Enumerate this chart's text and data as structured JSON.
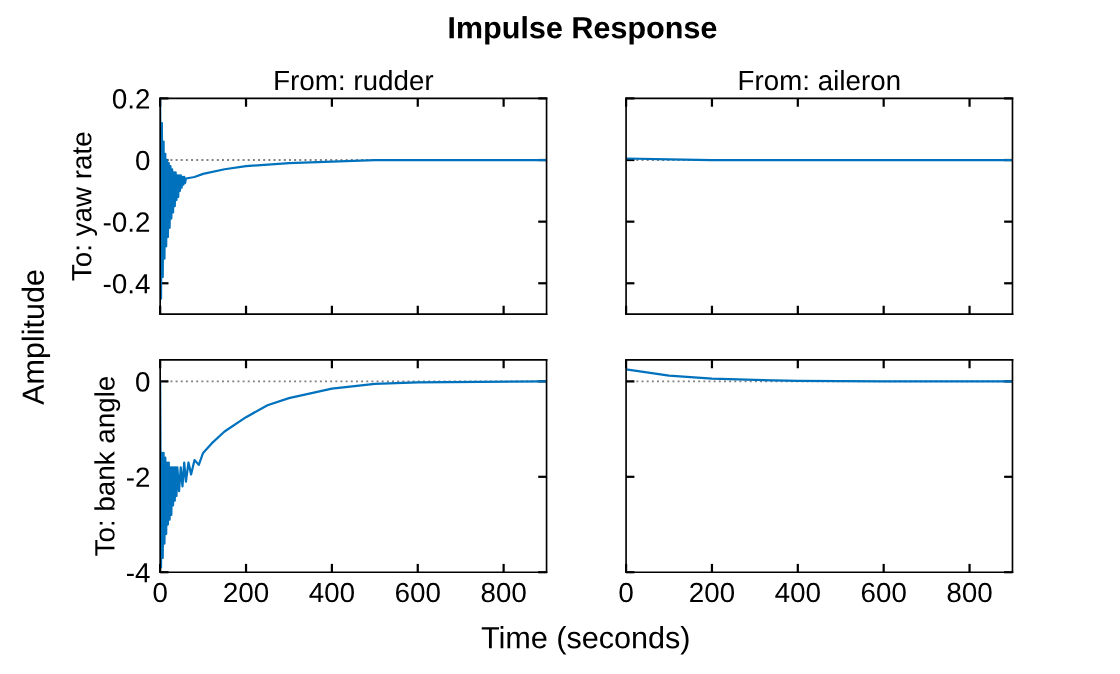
{
  "chart_data": [
    {
      "type": "line",
      "title": "From: rudder",
      "ylabel": "To: yaw rate",
      "annotations": [
        "Impulse Response",
        "Amplitude",
        "Time (seconds)"
      ],
      "tick_labels": "y",
      "x": [
        0,
        2,
        4,
        6,
        8,
        10,
        12,
        14,
        16,
        18,
        20,
        22,
        24,
        26,
        28,
        30,
        32,
        34,
        36,
        38,
        40,
        42,
        44,
        46,
        48,
        50,
        52,
        54,
        56,
        58,
        60,
        80,
        100,
        150,
        200,
        300,
        400,
        500,
        900
      ],
      "series": [
        {
          "color": "#0072bd",
          "values": [
            0.2,
            -0.45,
            0.12,
            -0.38,
            0.06,
            -0.32,
            0.02,
            -0.28,
            0.0,
            -0.25,
            -0.01,
            -0.22,
            -0.02,
            -0.19,
            -0.03,
            -0.17,
            -0.04,
            -0.15,
            -0.04,
            -0.13,
            -0.05,
            -0.12,
            -0.05,
            -0.1,
            -0.05,
            -0.09,
            -0.055,
            -0.08,
            -0.055,
            -0.075,
            -0.06,
            -0.055,
            -0.045,
            -0.03,
            -0.02,
            -0.01,
            -0.005,
            0,
            0
          ]
        }
      ],
      "xlim": [
        0,
        900
      ],
      "xticks": [
        0,
        200,
        400,
        600,
        800
      ],
      "ylim": [
        -0.5,
        0.2
      ],
      "yticks": [
        -0.4,
        -0.2,
        0,
        0.2
      ],
      "ref_lines": [
        {
          "axis": "y",
          "value": 0,
          "color": "#808080",
          "line_style": "dotted"
        }
      ]
    },
    {
      "type": "line",
      "title": "From: aileron",
      "tick_labels": false,
      "x": [
        0,
        100,
        200,
        900
      ],
      "series": [
        {
          "color": "#0072bd",
          "values": [
            0.005,
            0.002,
            0,
            0
          ]
        }
      ],
      "xlim": [
        0,
        900
      ],
      "xticks": [
        0,
        200,
        400,
        600,
        800
      ],
      "ylim": [
        -0.5,
        0.2
      ],
      "yticks": [
        -0.4,
        -0.2,
        0,
        0.2
      ],
      "ref_lines": [
        {
          "axis": "y",
          "value": 0,
          "color": "#808080",
          "line_style": "dotted"
        }
      ]
    },
    {
      "type": "line",
      "ylabel": "To: bank angle",
      "x": [
        0,
        2,
        4,
        6,
        8,
        10,
        12,
        14,
        16,
        18,
        20,
        22,
        24,
        26,
        28,
        30,
        32,
        34,
        36,
        38,
        40,
        44,
        48,
        52,
        56,
        60,
        66,
        72,
        80,
        90,
        100,
        120,
        150,
        200,
        250,
        300,
        400,
        500,
        600,
        900
      ],
      "series": [
        {
          "color": "#0072bd",
          "values": [
            0,
            -3.9,
            -1.5,
            -3.7,
            -1.5,
            -3.4,
            -1.6,
            -3.2,
            -1.7,
            -3.0,
            -1.7,
            -2.9,
            -1.8,
            -2.8,
            -1.8,
            -2.6,
            -1.8,
            -2.5,
            -1.8,
            -2.4,
            -1.8,
            -2.3,
            -1.8,
            -2.2,
            -1.7,
            -2.1,
            -1.7,
            -1.95,
            -1.65,
            -1.75,
            -1.5,
            -1.3,
            -1.05,
            -0.75,
            -0.5,
            -0.35,
            -0.15,
            -0.05,
            -0.02,
            0
          ]
        }
      ],
      "xlim": [
        0,
        900
      ],
      "xticks": [
        0,
        200,
        400,
        600,
        800
      ],
      "ylim": [
        -4,
        0.45
      ],
      "yticks": [
        -4,
        -2,
        0
      ],
      "ref_lines": [
        {
          "axis": "y",
          "value": 0,
          "color": "#808080",
          "line_style": "dotted"
        }
      ]
    },
    {
      "type": "line",
      "tick_labels": "x",
      "x": [
        0,
        100,
        200,
        300,
        400,
        600,
        900
      ],
      "series": [
        {
          "color": "#0072bd",
          "values": [
            0.25,
            0.12,
            0.06,
            0.03,
            0.01,
            0,
            0
          ]
        }
      ],
      "xlim": [
        0,
        900
      ],
      "xticks": [
        0,
        200,
        400,
        600,
        800
      ],
      "ylim": [
        -4,
        0.45
      ],
      "yticks": [
        -4,
        -2,
        0
      ],
      "ref_lines": [
        {
          "axis": "y",
          "value": 0,
          "color": "#808080",
          "line_style": "dotted"
        }
      ]
    }
  ]
}
